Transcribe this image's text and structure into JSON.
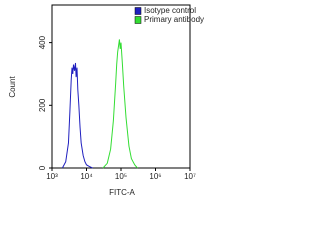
{
  "chart_data": {
    "type": "line",
    "xlabel": "FITC-A",
    "ylabel": "Count",
    "xscale": "log",
    "xlim": [
      1000,
      10000000
    ],
    "xticks": [
      {
        "value": 1000,
        "label": "10³"
      },
      {
        "value": 10000,
        "label": "10⁴"
      },
      {
        "value": 100000,
        "label": "10⁵"
      },
      {
        "value": 1000000,
        "label": "10⁶"
      },
      {
        "value": 10000000,
        "label": "10⁷"
      }
    ],
    "ylim": [
      0,
      520
    ],
    "yticks": [
      0,
      200,
      400
    ],
    "legend": "upper right",
    "series": [
      {
        "name": "Isotype control",
        "color": "#1f1fbf",
        "x": [
          2000,
          2500,
          3000,
          3300,
          3600,
          3800,
          4000,
          4200,
          4500,
          4800,
          5000,
          5300,
          5600,
          6000,
          6500,
          7000,
          8000,
          9000,
          10000,
          12000,
          15000
        ],
        "values": [
          0,
          20,
          80,
          180,
          280,
          320,
          300,
          330,
          310,
          335,
          290,
          320,
          250,
          200,
          130,
          80,
          40,
          20,
          10,
          5,
          0
        ]
      },
      {
        "name": "Primary antibody",
        "color": "#33dd33",
        "x": [
          30000,
          40000,
          50000,
          60000,
          70000,
          75000,
          80000,
          85000,
          90000,
          95000,
          100000,
          110000,
          120000,
          140000,
          170000,
          200000,
          250000,
          300000
        ],
        "values": [
          0,
          15,
          60,
          150,
          270,
          330,
          370,
          390,
          410,
          380,
          400,
          330,
          260,
          160,
          70,
          30,
          10,
          0
        ]
      }
    ]
  }
}
